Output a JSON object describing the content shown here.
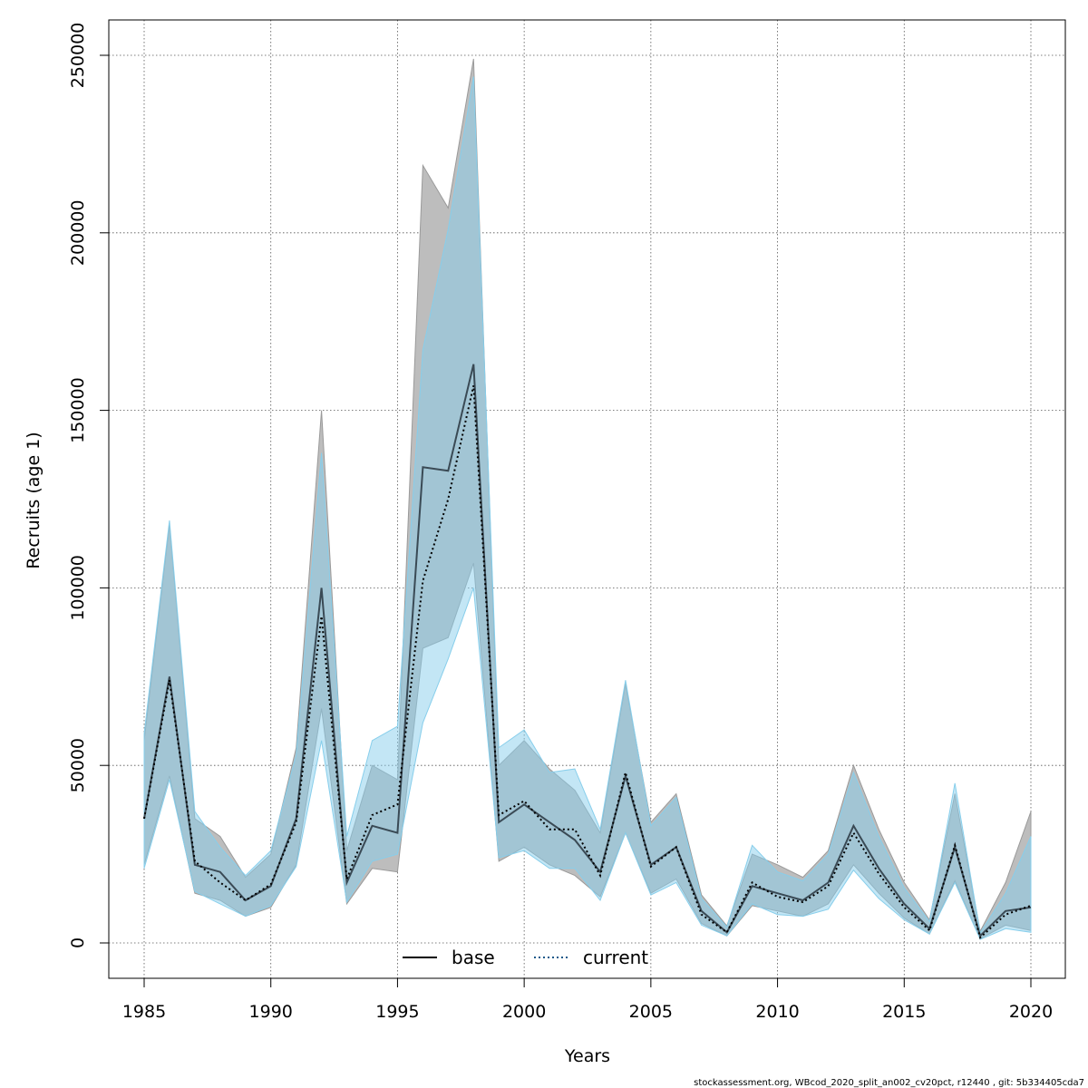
{
  "chart_data": {
    "type": "line",
    "xlabel": "Years",
    "ylabel": "Recruits (age 1)",
    "xlim": [
      1983.6,
      2021.1
    ],
    "ylim": [
      -10000,
      260000
    ],
    "x_ticks": [
      1985,
      1990,
      1995,
      2000,
      2005,
      2010,
      2015,
      2020
    ],
    "y_ticks": [
      0,
      50000,
      100000,
      150000,
      200000,
      250000
    ],
    "x_tick_labels": [
      "1985",
      "1990",
      "1995",
      "2000",
      "2005",
      "2010",
      "2015",
      "2020"
    ],
    "y_tick_labels": [
      "0",
      "50000",
      "100000",
      "150000",
      "200000",
      "250000"
    ],
    "grid": true,
    "legend_position": "bottom-center",
    "years": [
      1985,
      1986,
      1987,
      1988,
      1989,
      1990,
      1991,
      1992,
      1993,
      1994,
      1995,
      1996,
      1997,
      1998,
      1999,
      2000,
      2001,
      2002,
      2003,
      2004,
      2005,
      2006,
      2007,
      2008,
      2009,
      2010,
      2011,
      2012,
      2013,
      2014,
      2015,
      2016,
      2017,
      2018,
      2019,
      2020
    ],
    "series": [
      {
        "name": "base",
        "line_style": "solid",
        "line_color": "#000000",
        "band_color": "#bdbdbd",
        "values": [
          35000,
          75000,
          22000,
          20000,
          12000,
          16000,
          35000,
          100000,
          17000,
          33000,
          31000,
          134000,
          133000,
          163000,
          34000,
          39000,
          34000,
          29000,
          20000,
          47000,
          22000,
          27000,
          9000,
          3000,
          16000,
          14000,
          12000,
          17000,
          33000,
          21000,
          11000,
          4000,
          27000,
          2000,
          9000,
          10000
        ],
        "lower": [
          22000,
          47000,
          14000,
          12000,
          7500,
          10000,
          22000,
          66000,
          11000,
          21000,
          20000,
          83000,
          86000,
          107000,
          23000,
          27000,
          22000,
          19000,
          13000,
          31000,
          14000,
          18000,
          5500,
          2000,
          10500,
          9000,
          7500,
          11000,
          22000,
          14000,
          7000,
          2500,
          17500,
          1200,
          5000,
          3500
        ],
        "upper": [
          57000,
          118000,
          35000,
          30000,
          18500,
          25000,
          55000,
          150000,
          26000,
          50000,
          46000,
          219000,
          207000,
          249000,
          50000,
          57000,
          49000,
          43000,
          31000,
          73000,
          34000,
          42000,
          13500,
          4800,
          25000,
          22000,
          18500,
          26000,
          50000,
          32000,
          17000,
          6500,
          42000,
          3300,
          17000,
          37000
        ]
      },
      {
        "name": "current",
        "line_style": "dotted",
        "line_color": "#000000",
        "band_color": "#87ceeb",
        "values": [
          35000,
          74000,
          23000,
          17000,
          12000,
          16500,
          34000,
          92000,
          18000,
          36000,
          39000,
          102000,
          125000,
          157000,
          36000,
          40000,
          32000,
          32000,
          19000,
          48000,
          21500,
          27000,
          8000,
          3000,
          17000,
          13000,
          11500,
          16000,
          31000,
          19500,
          10000,
          3500,
          27500,
          1500,
          8000,
          10500
        ],
        "lower": [
          21000,
          46000,
          14500,
          11000,
          7500,
          10500,
          21500,
          57000,
          11500,
          23000,
          25000,
          62000,
          80000,
          100000,
          24000,
          26000,
          21000,
          21000,
          12000,
          31000,
          13500,
          17000,
          5000,
          2000,
          11000,
          8000,
          7500,
          9500,
          20500,
          12500,
          6500,
          2500,
          17000,
          1000,
          4000,
          3000
        ],
        "upper": [
          59000,
          119000,
          37000,
          27000,
          19000,
          26000,
          53000,
          138000,
          30000,
          57000,
          61000,
          167000,
          201000,
          244000,
          55000,
          60000,
          48000,
          49000,
          32000,
          74000,
          33000,
          41000,
          12500,
          4500,
          27500,
          20000,
          17500,
          25000,
          48000,
          30000,
          15500,
          6000,
          45000,
          2800,
          14000,
          30000
        ]
      }
    ]
  },
  "footer": "stockassessment.org, WBcod_2020_split_an002_cv20pct, r12440 , git: 5b334405cda7"
}
